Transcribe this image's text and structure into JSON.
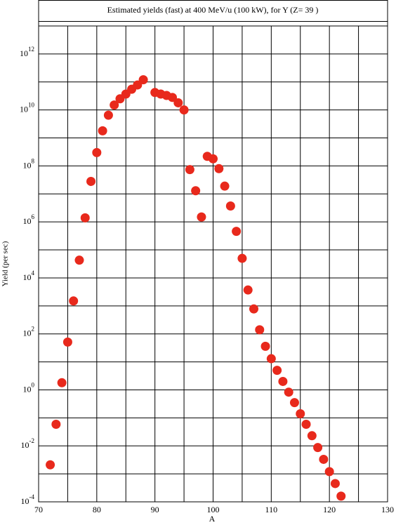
{
  "chart_data": {
    "type": "scatter",
    "title": "Estimated yields (fast) at 400 MeV/u (100 kW), for Y (Z= 39 )",
    "x_label": "A",
    "y_label": "Yield (per sec)",
    "y_log": true,
    "grid": true,
    "xlim": [
      70,
      130
    ],
    "xticks": [
      70,
      80,
      90,
      100,
      110,
      120,
      130
    ],
    "minor_xticks": [
      75,
      85,
      95,
      105,
      115,
      125
    ],
    "ylim": [
      0.0001,
      10000000000000
    ],
    "yticks": [
      {
        "value": 0.0001,
        "base": "10",
        "exponent": "-4"
      },
      {
        "value": 0.01,
        "base": "10",
        "exponent": "-2"
      },
      {
        "value": 1,
        "base": "10",
        "exponent": "0"
      },
      {
        "value": 100,
        "base": "10",
        "exponent": "2"
      },
      {
        "value": 10000,
        "base": "10",
        "exponent": "4"
      },
      {
        "value": 1000000,
        "base": "10",
        "exponent": "6"
      },
      {
        "value": 100000000,
        "base": "10",
        "exponent": "8"
      },
      {
        "value": 10000000000,
        "base": "10",
        "exponent": "10"
      },
      {
        "value": 1000000000000,
        "base": "10",
        "exponent": "12"
      }
    ],
    "minor_yticks": [
      0.001,
      0.1,
      10,
      1000,
      100000,
      10000000,
      1000000000,
      100000000000,
      10000000000000
    ],
    "series": [
      {
        "color": "#e8291c",
        "x": [
          72,
          73,
          74,
          75,
          76,
          77,
          78,
          79,
          80,
          81,
          82,
          83,
          84,
          85,
          86,
          87,
          88,
          90,
          91,
          92,
          93,
          94,
          95,
          96,
          97,
          98,
          99,
          100,
          101,
          102,
          103,
          104,
          105,
          106,
          107,
          108,
          109,
          110,
          111,
          112,
          113,
          114,
          115,
          116,
          117,
          118,
          119,
          120,
          121,
          122
        ],
        "values": [
          0.0021,
          0.059,
          1.8,
          51,
          1500,
          43000,
          1400000,
          28000000,
          300000000,
          1800000000,
          6500000000,
          15000000000,
          25000000000,
          37000000000,
          55000000000,
          78000000000,
          120000000000,
          42000000000,
          37000000000,
          33000000000,
          28000000000,
          18000000000,
          10000000000,
          74000000,
          13000000,
          1500000,
          220000000,
          180000000,
          80000000,
          19000000,
          3700000,
          460000,
          50000,
          3700,
          780,
          140,
          36,
          13,
          5,
          2,
          0.83,
          0.35,
          0.14,
          0.059,
          0.023,
          0.0087,
          0.0033,
          0.0012,
          0.00045,
          0.00016
        ]
      }
    ]
  }
}
